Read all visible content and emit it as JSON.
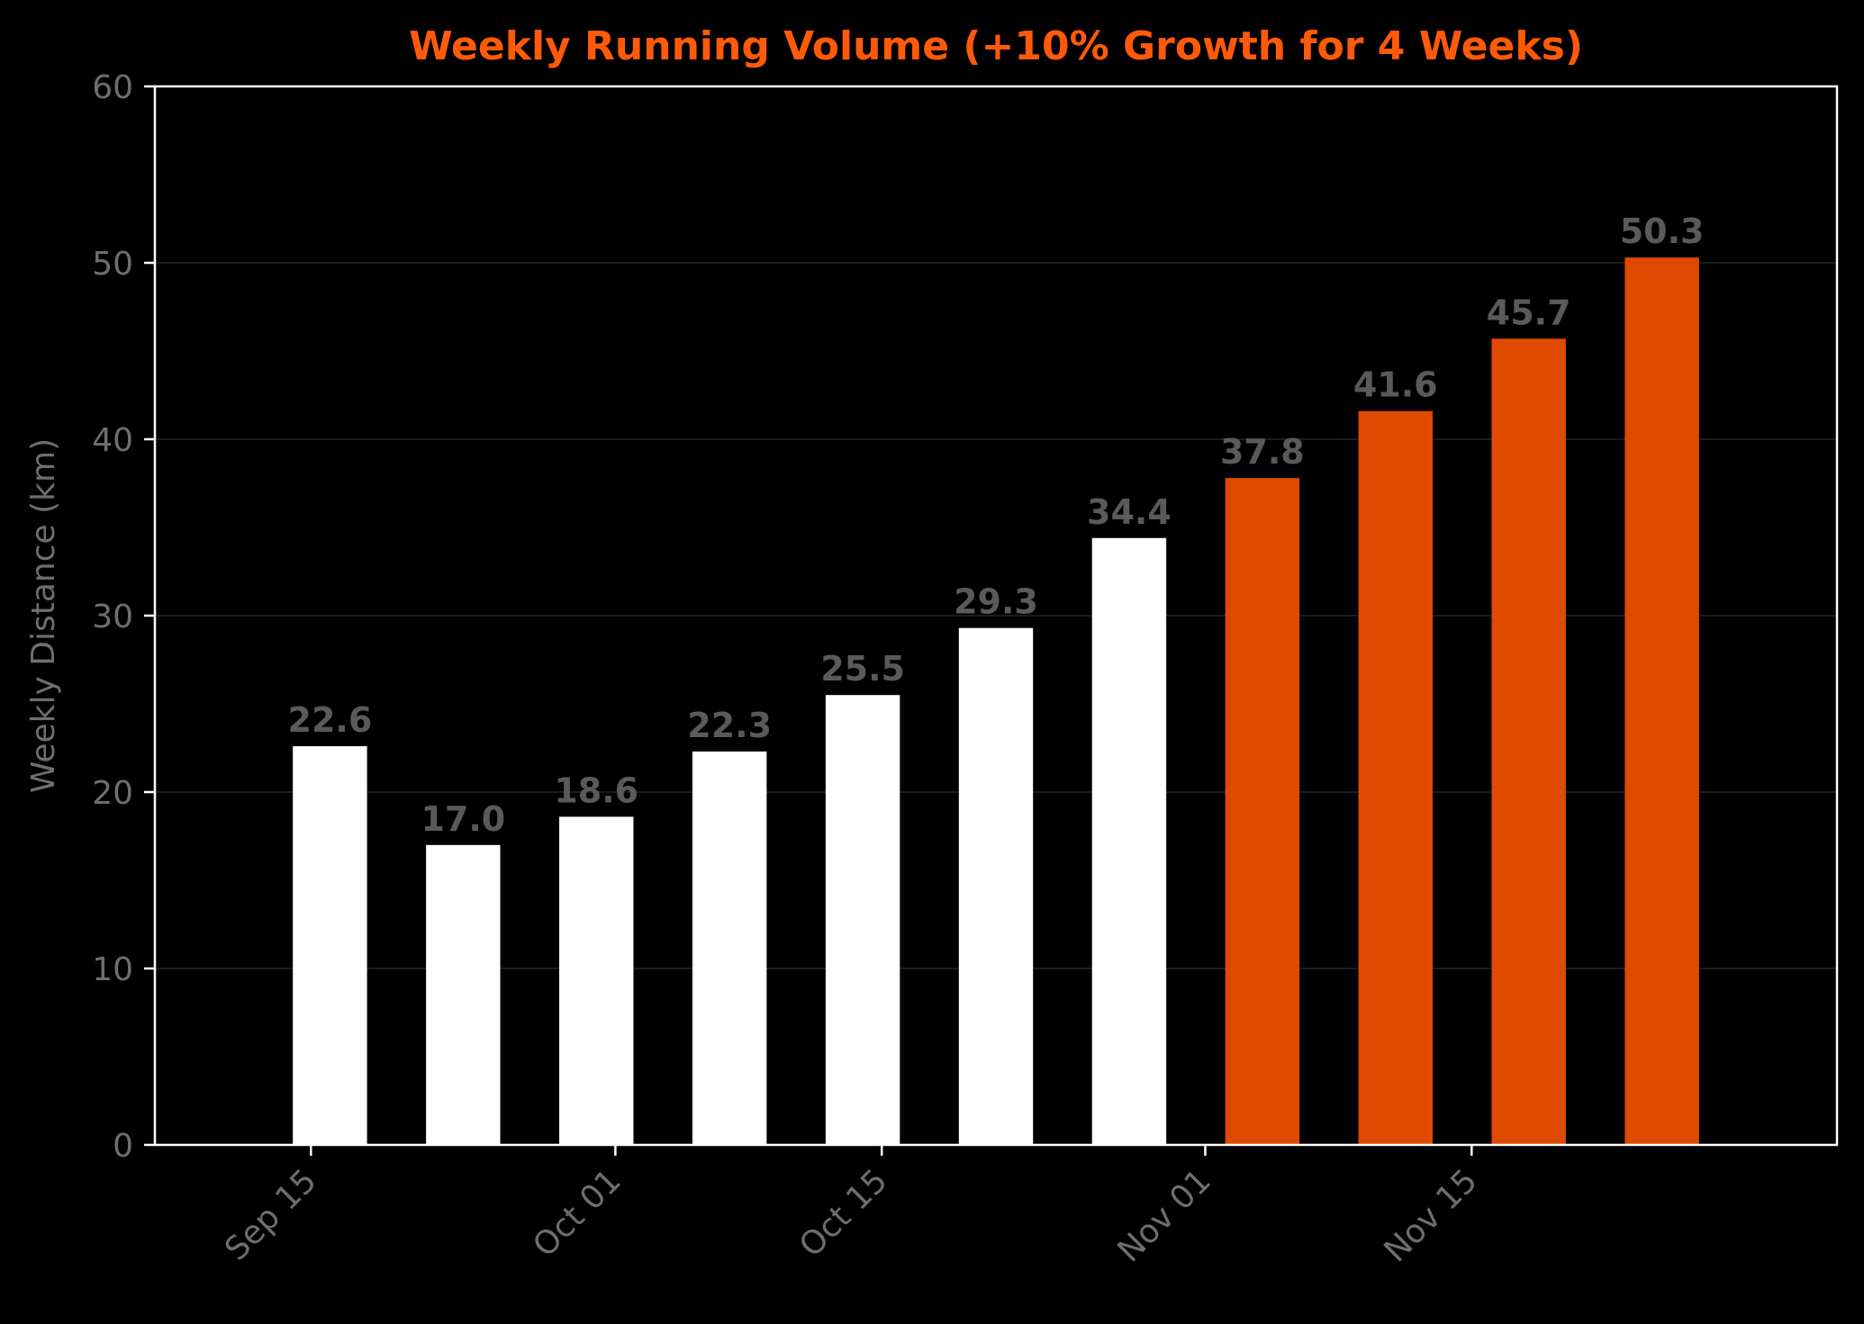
{
  "chart_data": {
    "type": "bar",
    "title": "Weekly Running Volume (+10% Growth for 4 Weeks)",
    "xlabel": "",
    "ylabel": "Weekly Distance (km)",
    "ylim": [
      0,
      60
    ],
    "yticks": [
      "0",
      "10",
      "20",
      "30",
      "40",
      "50",
      "60"
    ],
    "x_dates": [
      "2024-09-16",
      "2024-09-23",
      "2024-09-30",
      "2024-10-07",
      "2024-10-14",
      "2024-10-21",
      "2024-10-28",
      "2024-11-04",
      "2024-11-11",
      "2024-11-18",
      "2024-11-25"
    ],
    "values": [
      22.6,
      17.0,
      18.6,
      22.3,
      25.5,
      29.3,
      34.4,
      37.8,
      41.6,
      45.7,
      50.3
    ],
    "value_labels": [
      "22.6",
      "17.0",
      "18.6",
      "22.3",
      "25.5",
      "29.3",
      "34.4",
      "37.8",
      "41.6",
      "45.7",
      "50.3"
    ],
    "bar_colors": [
      "#ffffff",
      "#ffffff",
      "#ffffff",
      "#ffffff",
      "#ffffff",
      "#ffffff",
      "#ffffff",
      "#e04a00",
      "#e04a00",
      "#e04a00",
      "#e04a00"
    ],
    "xtick_dates": [
      "2024-09-15",
      "2024-10-01",
      "2024-10-15",
      "2024-11-01",
      "2024-11-15"
    ],
    "xtick_labels": [
      "Sep 15",
      "Oct 01",
      "Oct 15",
      "Nov 01",
      "Nov 15"
    ],
    "grid": true,
    "colors": {
      "background": "#000000",
      "title": "#ff5a0a",
      "axis": "#ffffff",
      "tick_label": "#6e6e6e",
      "value_label": "#5a5a5a",
      "grid": "#1c1c1c",
      "base_bar": "#ffffff",
      "growth_bar": "#e04a00"
    }
  }
}
